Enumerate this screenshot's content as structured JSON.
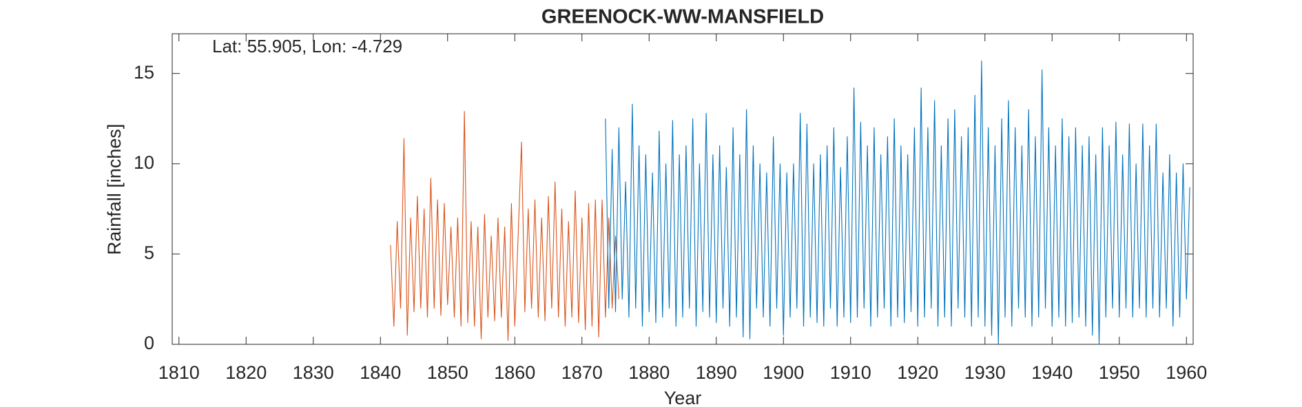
{
  "chart_data": {
    "type": "line",
    "title": "GREENOCK-WW-MANSFIELD",
    "annotation": "Lat: 55.905, Lon: -4.729",
    "xlabel": "Year",
    "ylabel": "Rainfall [inches]",
    "xlim": [
      1809,
      1961
    ],
    "ylim": [
      0,
      17.2
    ],
    "xticks": [
      1810,
      1820,
      1830,
      1840,
      1850,
      1860,
      1870,
      1880,
      1890,
      1900,
      1910,
      1920,
      1930,
      1940,
      1950,
      1960
    ],
    "yticks": [
      0,
      5,
      10,
      15
    ],
    "grid": false,
    "series": [
      {
        "color": "#D95319",
        "x": [
          1841.5,
          1842,
          1842.5,
          1843,
          1843.5,
          1844,
          1844.5,
          1845,
          1845.5,
          1846,
          1846.5,
          1847,
          1847.5,
          1848,
          1848.5,
          1849,
          1849.5,
          1850,
          1850.5,
          1851,
          1851.5,
          1852,
          1852.5,
          1853,
          1853.5,
          1854,
          1854.5,
          1855,
          1855.5,
          1856,
          1856.5,
          1857,
          1857.5,
          1858,
          1858.5,
          1859,
          1859.5,
          1860,
          1860.5,
          1861,
          1861.5,
          1862,
          1862.5,
          1863,
          1863.5,
          1864,
          1864.5,
          1865,
          1865.5,
          1866,
          1866.5,
          1867,
          1867.5,
          1868,
          1868.5,
          1869,
          1869.5,
          1870,
          1870.5,
          1871,
          1871.5,
          1872,
          1872.5,
          1873,
          1873.5,
          1874,
          1874.5,
          1875,
          1875.5
        ],
        "values": [
          5.5,
          1.0,
          6.8,
          2.0,
          11.4,
          0.5,
          7.0,
          1.8,
          8.2,
          2.0,
          7.5,
          1.5,
          9.2,
          2.0,
          8.0,
          1.6,
          7.8,
          2.2,
          6.5,
          1.5,
          7.0,
          1.0,
          12.9,
          1.2,
          6.8,
          1.0,
          6.5,
          0.3,
          7.2,
          1.5,
          6.0,
          1.3,
          7.0,
          1.5,
          6.5,
          0.2,
          7.8,
          1.0,
          6.0,
          11.2,
          1.8,
          7.5,
          2.0,
          8.0,
          1.5,
          7.0,
          1.3,
          8.2,
          2.0,
          9.0,
          1.5,
          7.5,
          1.0,
          6.8,
          1.5,
          8.5,
          1.2,
          7.0,
          0.8,
          7.8,
          1.0,
          8.0,
          0.4,
          8.0,
          1.5,
          7.0,
          2.0,
          6.0,
          2.5
        ]
      },
      {
        "color": "#0072BD",
        "x": [
          1873.5,
          1874,
          1874.5,
          1875,
          1875.5,
          1876,
          1876.5,
          1877,
          1877.5,
          1878,
          1878.5,
          1879,
          1879.5,
          1880,
          1880.5,
          1881,
          1881.5,
          1882,
          1882.5,
          1883,
          1883.5,
          1884,
          1884.5,
          1885,
          1885.5,
          1886,
          1886.5,
          1887,
          1887.5,
          1888,
          1888.5,
          1889,
          1889.5,
          1890,
          1890.5,
          1891,
          1891.5,
          1892,
          1892.5,
          1893,
          1893.5,
          1894,
          1894.5,
          1895,
          1895.5,
          1896,
          1896.5,
          1897,
          1897.5,
          1898,
          1898.5,
          1899,
          1899.5,
          1900,
          1900.5,
          1901,
          1901.5,
          1902,
          1902.5,
          1903,
          1903.5,
          1904,
          1904.5,
          1905,
          1905.5,
          1906,
          1906.5,
          1907,
          1907.5,
          1908,
          1908.5,
          1909,
          1909.5,
          1910,
          1910.5,
          1911,
          1911.5,
          1912,
          1912.5,
          1913,
          1913.5,
          1914,
          1914.5,
          1915,
          1915.5,
          1916,
          1916.5,
          1917,
          1917.5,
          1918,
          1918.5,
          1919,
          1919.5,
          1920,
          1920.5,
          1921,
          1921.5,
          1922,
          1922.5,
          1923,
          1923.5,
          1924,
          1924.5,
          1925,
          1925.5,
          1926,
          1926.5,
          1927,
          1927.5,
          1928,
          1928.5,
          1929,
          1929.5,
          1930,
          1930.5,
          1931,
          1931.5,
          1932,
          1932.5,
          1933,
          1933.5,
          1934,
          1934.5,
          1935,
          1935.5,
          1936,
          1936.5,
          1937,
          1937.5,
          1938,
          1938.5,
          1939,
          1939.5,
          1940,
          1940.5,
          1941,
          1941.5,
          1942,
          1942.5,
          1943,
          1943.5,
          1944,
          1944.5,
          1945,
          1945.5,
          1946,
          1946.5,
          1947,
          1947.5,
          1948,
          1948.5,
          1949,
          1949.5,
          1950,
          1950.5,
          1951,
          1951.5,
          1952,
          1952.5,
          1953,
          1953.5,
          1954,
          1954.5,
          1955,
          1955.5,
          1956,
          1956.5,
          1957,
          1957.5,
          1958,
          1958.5,
          1959,
          1959.5,
          1960,
          1960.5
        ],
        "values": [
          12.5,
          2.0,
          10.8,
          1.8,
          12.0,
          2.5,
          9.0,
          1.5,
          13.3,
          2.0,
          11.0,
          1.0,
          10.5,
          1.8,
          9.5,
          1.2,
          11.8,
          1.5,
          10.0,
          2.0,
          12.4,
          1.0,
          10.5,
          1.5,
          11.0,
          2.0,
          12.5,
          1.0,
          10.0,
          1.8,
          12.8,
          1.5,
          10.5,
          1.2,
          11.0,
          2.0,
          9.8,
          1.0,
          12.0,
          1.5,
          10.5,
          0.4,
          13.0,
          0.3,
          11.0,
          2.0,
          10.0,
          1.5,
          9.5,
          1.0,
          11.5,
          2.0,
          10.0,
          0.5,
          9.5,
          1.5,
          10.0,
          2.0,
          12.8,
          1.0,
          12.2,
          1.5,
          10.0,
          1.2,
          10.5,
          1.0,
          11.0,
          2.0,
          12.0,
          1.0,
          9.8,
          1.5,
          11.5,
          1.2,
          14.2,
          1.5,
          12.3,
          2.0,
          11.0,
          1.0,
          12.0,
          1.5,
          10.5,
          2.0,
          11.5,
          1.0,
          12.5,
          1.5,
          11.0,
          1.2,
          10.5,
          1.8,
          12.0,
          1.0,
          14.2,
          1.5,
          12.0,
          2.0,
          13.5,
          1.0,
          11.0,
          1.5,
          12.5,
          1.0,
          13.0,
          2.0,
          11.5,
          1.5,
          12.0,
          1.0,
          13.8,
          1.5,
          15.7,
          1.0,
          12.0,
          0.5,
          11.0,
          0.0,
          12.5,
          1.5,
          13.5,
          1.0,
          12.0,
          2.0,
          11.0,
          1.5,
          13.0,
          1.0,
          11.5,
          1.5,
          15.2,
          2.0,
          12.0,
          1.0,
          11.0,
          1.5,
          12.5,
          1.0,
          11.5,
          1.2,
          12.0,
          1.5,
          11.0,
          1.0,
          11.5,
          0.5,
          10.5,
          0.0,
          12.0,
          1.5,
          11.0,
          2.0,
          12.3,
          1.5,
          10.5,
          2.0,
          12.2,
          1.5,
          10.0,
          2.0,
          12.2,
          1.5,
          11.0,
          2.0,
          12.2,
          1.5,
          9.5,
          2.0,
          10.5,
          1.0,
          9.5,
          1.5,
          10.0,
          2.5,
          8.7
        ]
      }
    ]
  }
}
